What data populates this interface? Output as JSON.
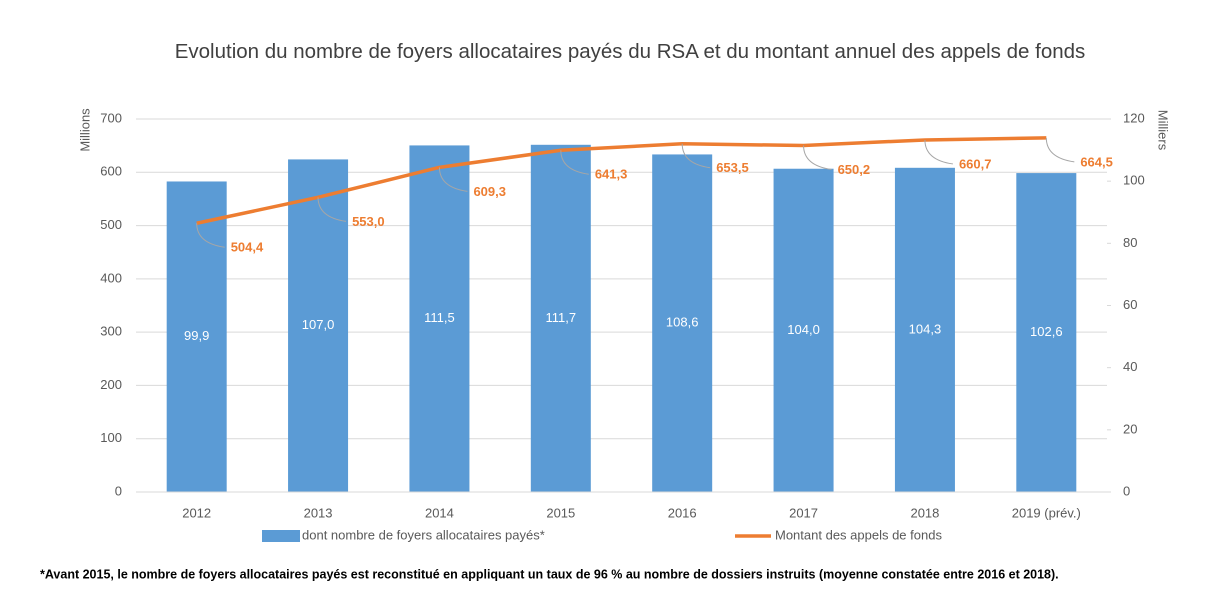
{
  "chart_data": {
    "type": "bar_line",
    "title": "Evolution du nombre de foyers allocataires  payés du RSA et du montant annuel des appels de fonds",
    "ylabel": "Millions",
    "y2label": "Milliers",
    "categories": [
      "2012",
      "2013",
      "2014",
      "2015",
      "2016",
      "2017",
      "2018",
      "2019 (prév.)"
    ],
    "series": [
      {
        "name": "dont nombre de foyers allocataires payés*",
        "type": "bar",
        "axis": "y2",
        "color": "#5b9bd5",
        "values": [
          99.9,
          107.0,
          111.5,
          111.7,
          108.6,
          104.0,
          104.3,
          102.6
        ],
        "value_labels": [
          "99,9",
          "107,0",
          "111,5",
          "111,7",
          "108,6",
          "104,0",
          "104,3",
          "102,6"
        ]
      },
      {
        "name": "Montant des appels de fonds",
        "type": "line",
        "axis": "y",
        "color": "#ed7d31",
        "values": [
          504.4,
          553.0,
          609.3,
          641.3,
          653.5,
          650.2,
          660.7,
          664.5
        ],
        "value_labels": [
          "504,4",
          "553,0",
          "609,3",
          "641,3",
          "653,5",
          "650,2",
          "660,7",
          "664,5"
        ]
      }
    ],
    "ylim": [
      0,
      700
    ],
    "yticks": [
      0,
      100,
      200,
      300,
      400,
      500,
      600,
      700
    ],
    "y2lim": [
      0,
      120
    ],
    "y2ticks": [
      0,
      20,
      40,
      60,
      80,
      100,
      120
    ],
    "grid": true,
    "legend": "bottom",
    "footnote": "*Avant 2015, le nombre de foyers allocataires payés est reconstitué en appliquant un taux de 96 % au nombre de dossiers instruits (moyenne constatée entre 2016 et 2018)."
  }
}
